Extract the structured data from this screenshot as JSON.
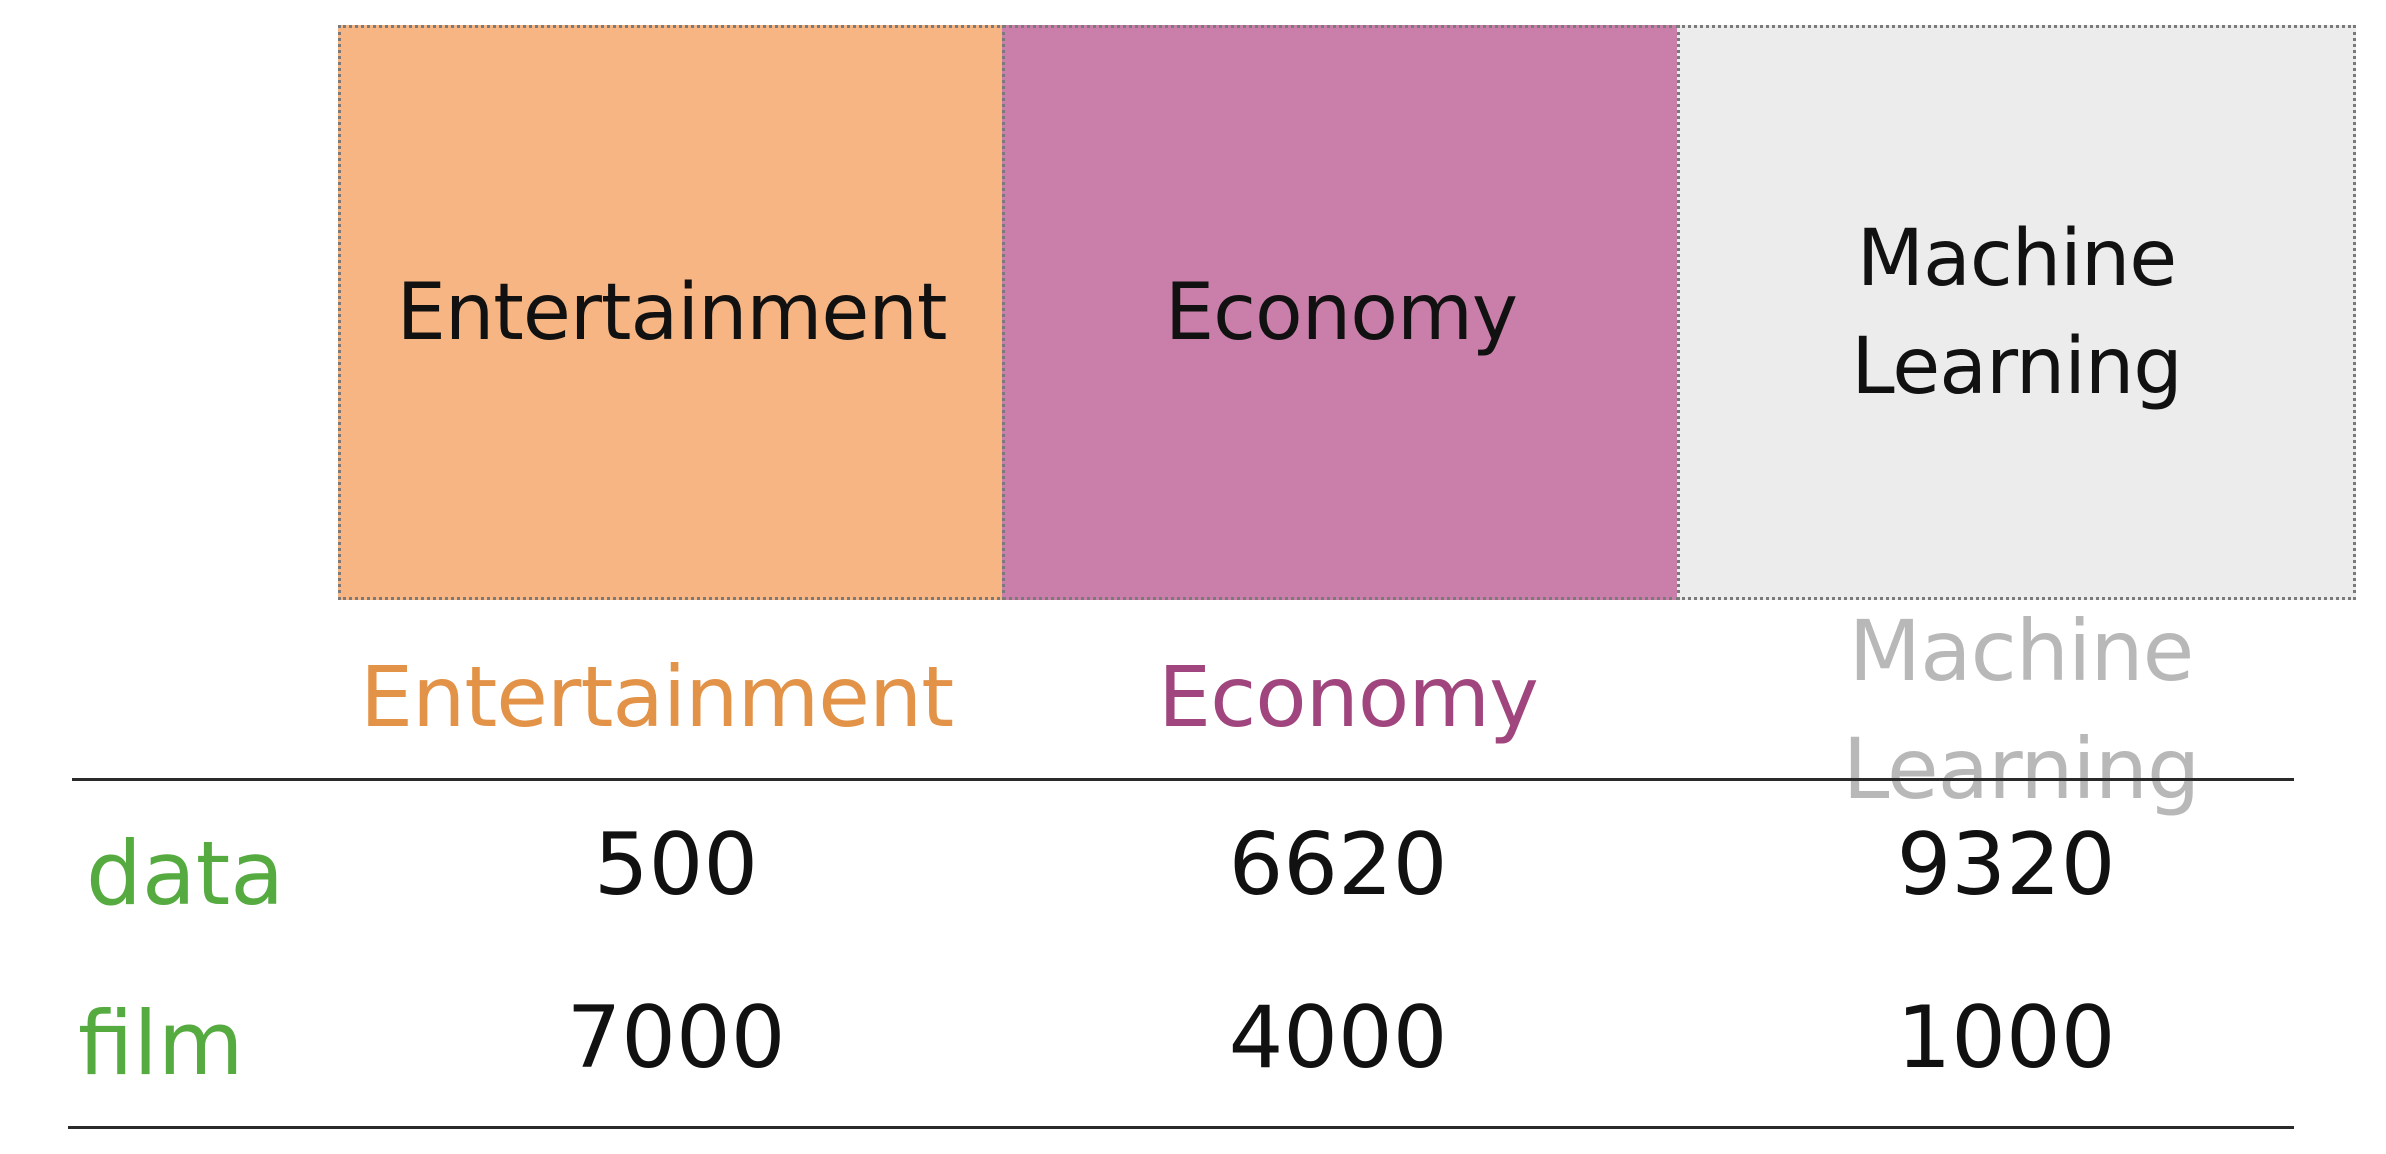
{
  "topics": [
    {
      "name_lines": [
        "Entertainment"
      ],
      "color": "#f6b583",
      "text_color": "#e39347"
    },
    {
      "name_lines": [
        "Economy"
      ],
      "color": "#c97fa9",
      "text_color": "#a0457d"
    },
    {
      "name_lines": [
        "Machine",
        "Learning"
      ],
      "color": "#ececec",
      "text_color": "#b8b8b8"
    }
  ],
  "table": {
    "rows": [
      {
        "word": "data",
        "values": [
          "500",
          "6620",
          "9320"
        ]
      },
      {
        "word": "film",
        "values": [
          "7000",
          "4000",
          "1000"
        ]
      }
    ]
  }
}
